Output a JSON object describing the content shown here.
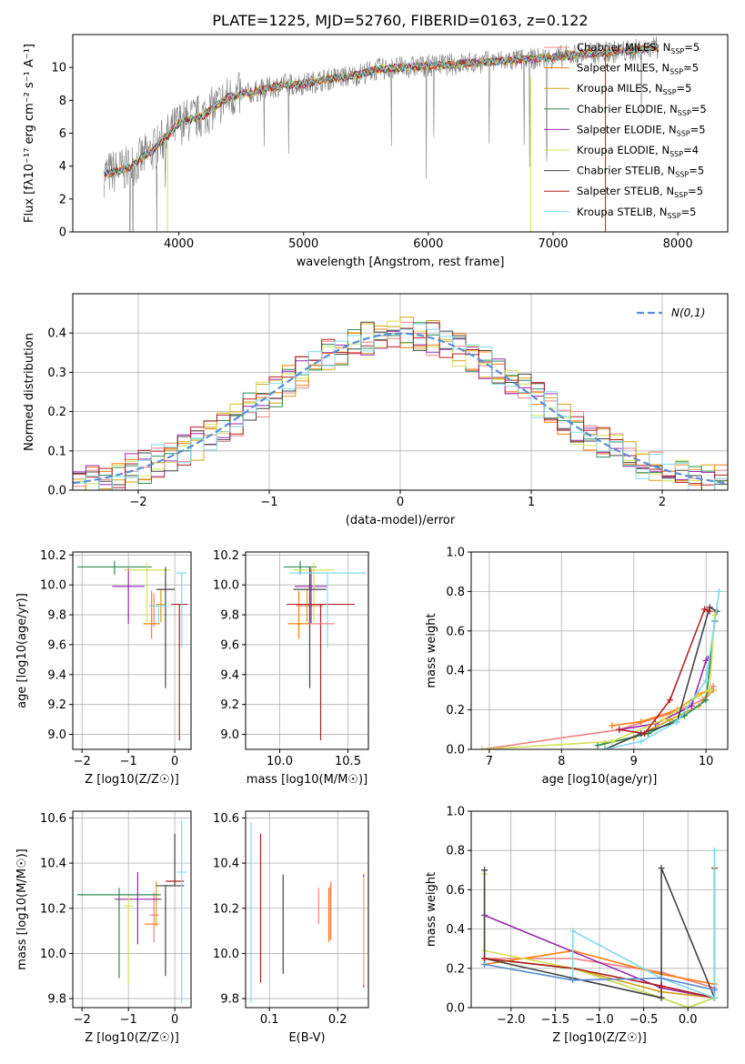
{
  "figure": {
    "title": "PLATE=1225, MJD=52760, FIBERID=0163, z=0.122"
  },
  "colors": {
    "Chabrier MILES": "#f08080",
    "Salpeter MILES": "#ff7f0e",
    "Kroupa MILES": "#d4a017",
    "Chabrier ELODIE": "#2e8b57",
    "Salpeter ELODIE": "#9c27b0",
    "Kroupa ELODIE": "#d4e157",
    "Chabrier STELIB": "#444444",
    "Salpeter STELIB": "#b22222",
    "Kroupa STELIB": "#7fdbe6",
    "data": "#808080",
    "normal": "#5b8ed6",
    "blue": "#5b8ed6"
  },
  "chart_data": [
    {
      "id": "spectrum",
      "type": "line",
      "xlabel": "wavelength [Angstrom, rest frame]",
      "ylabel": "Flux [fλ10⁻¹⁷ erg cm⁻² s⁻¹ A⁻¹]",
      "xlim": [
        3150,
        8400
      ],
      "ylim": [
        0,
        12
      ],
      "xticks": [
        4000,
        5000,
        6000,
        7000,
        8000
      ],
      "yticks": [
        0,
        2,
        4,
        6,
        8,
        10
      ],
      "legend_position": "top-right",
      "legend": [
        "Chabrier MILES, N_SSP=5",
        "Salpeter MILES, N_SSP=5",
        "Kroupa MILES, N_SSP=5",
        "Chabrier ELODIE, N_SSP=5",
        "Salpeter ELODIE, N_SSP=5",
        "Kroupa ELODIE, N_SSP=4",
        "Chabrier STELIB, N_SSP=5",
        "Salpeter STELIB, N_SSP=5",
        "Kroupa STELIB, N_SSP=5"
      ],
      "continuum": {
        "x": [
          3400,
          3600,
          3800,
          4000,
          4200,
          4400,
          4600,
          4800,
          5000,
          5200,
          5400,
          5600,
          5800,
          6000,
          6200,
          6400,
          6600,
          6800,
          7000,
          7200,
          7400,
          7600,
          7800
        ],
        "y": [
          3.5,
          3.9,
          5.0,
          6.6,
          7.1,
          8.2,
          8.5,
          8.9,
          9.0,
          9.3,
          9.5,
          9.9,
          10.0,
          10.1,
          10.2,
          10.3,
          10.4,
          10.5,
          10.6,
          10.8,
          10.9,
          11.0,
          11.2
        ]
      }
    },
    {
      "id": "residuals",
      "type": "line",
      "xlabel": "(data-model)/error",
      "ylabel": "Normed distribution",
      "xlim": [
        -2.5,
        2.5
      ],
      "ylim": [
        0,
        0.5
      ],
      "xticks": [
        -2,
        -1,
        0,
        1,
        2
      ],
      "yticks": [
        0.0,
        0.1,
        0.2,
        0.3,
        0.4
      ],
      "legend_position": "top-right",
      "legend": [
        "N(0,1)"
      ],
      "bin_width": 0.1
    },
    {
      "id": "age_vs_Z",
      "type": "scatter",
      "xlabel": "Z [log10(Z/Z☉)]",
      "ylabel": "age  [log10(age/yr)]",
      "xlim": [
        -2.2,
        0.35
      ],
      "ylim": [
        8.9,
        10.22
      ],
      "xticks": [
        -2,
        -1,
        0
      ],
      "yticks": [
        9.0,
        9.2,
        9.4,
        9.6,
        9.8,
        10.0,
        10.2
      ],
      "points": [
        {
          "model": "Chabrier MILES",
          "x": -0.45,
          "xerr": 0.1,
          "y": 9.86,
          "yerr_lo": 0.14,
          "yerr_hi": 0.08
        },
        {
          "model": "Salpeter MILES",
          "x": -0.5,
          "xerr": 0.18,
          "y": 9.74,
          "yerr_lo": 0.1,
          "yerr_hi": 0.22
        },
        {
          "model": "Kroupa MILES",
          "x": -0.3,
          "xerr": 0.1,
          "y": 9.87,
          "yerr_lo": 0.12,
          "yerr_hi": 0.1
        },
        {
          "model": "Chabrier ELODIE",
          "x": -1.3,
          "xerr": 0.8,
          "y": 10.12,
          "yerr_lo": 0.05,
          "yerr_hi": 0.04
        },
        {
          "model": "Salpeter ELODIE",
          "x": -1.0,
          "xerr": 0.35,
          "y": 9.99,
          "yerr_lo": 0.25,
          "yerr_hi": 0.12
        },
        {
          "model": "Kroupa ELODIE",
          "x": -0.6,
          "xerr": 0.5,
          "y": 10.1,
          "yerr_lo": 0.35,
          "yerr_hi": 0.05
        },
        {
          "model": "Chabrier STELIB",
          "x": -0.2,
          "xerr": 0.2,
          "y": 9.97,
          "yerr_lo": 0.66,
          "yerr_hi": 0.15
        },
        {
          "model": "Salpeter STELIB",
          "x": 0.1,
          "xerr": 0.18,
          "y": 9.87,
          "yerr_lo": 0.91,
          "yerr_hi": 0.0
        },
        {
          "model": "Kroupa STELIB",
          "x": 0.15,
          "xerr": 0.12,
          "y": 10.08,
          "yerr_lo": 0.5,
          "yerr_hi": 0.0
        },
        {
          "model": "Kroupa STELIB",
          "x": -0.35,
          "xerr": 0.2,
          "y": 9.86,
          "yerr_lo": 0.12,
          "yerr_hi": 0.0
        }
      ]
    },
    {
      "id": "age_vs_mass",
      "type": "scatter",
      "xlabel": "mass [log10(M/M☉)]",
      "ylabel": "",
      "xlim": [
        9.75,
        10.65
      ],
      "ylim": [
        8.9,
        10.22
      ],
      "xticks": [
        10.0,
        10.5
      ],
      "yticks": [
        9.0,
        9.2,
        9.4,
        9.6,
        9.8,
        10.0,
        10.2
      ],
      "points": [
        {
          "model": "Chabrier MILES",
          "x": 10.22,
          "xerr": 0.1,
          "y": 9.86,
          "yerr_lo": 0.14,
          "yerr_hi": 0.08
        },
        {
          "model": "Salpeter MILES",
          "x": 10.14,
          "xerr": 0.08,
          "y": 9.74,
          "yerr_lo": 0.1,
          "yerr_hi": 0.22
        },
        {
          "model": "Kroupa MILES",
          "x": 10.2,
          "xerr": 0.06,
          "y": 9.87,
          "yerr_lo": 0.12,
          "yerr_hi": 0.1
        },
        {
          "model": "Chabrier ELODIE",
          "x": 10.15,
          "xerr": 0.12,
          "y": 10.12,
          "yerr_lo": 0.05,
          "yerr_hi": 0.04
        },
        {
          "model": "Salpeter ELODIE",
          "x": 10.23,
          "xerr": 0.12,
          "y": 9.99,
          "yerr_lo": 0.25,
          "yerr_hi": 0.12
        },
        {
          "model": "Kroupa ELODIE",
          "x": 10.25,
          "xerr": 0.15,
          "y": 10.1,
          "yerr_lo": 0.35,
          "yerr_hi": 0.05
        },
        {
          "model": "Chabrier STELIB",
          "x": 10.22,
          "xerr": 0.12,
          "y": 9.97,
          "yerr_lo": 0.66,
          "yerr_hi": 0.15
        },
        {
          "model": "Salpeter STELIB",
          "x": 10.3,
          "xerr": 0.25,
          "y": 9.87,
          "yerr_lo": 0.91,
          "yerr_hi": 0.0
        },
        {
          "model": "Kroupa STELIB",
          "x": 10.35,
          "xerr": 0.28,
          "y": 10.08,
          "yerr_lo": 0.5,
          "yerr_hi": 0.0
        },
        {
          "model": "Chabrier MILES",
          "x": 10.3,
          "xerr": 0.1,
          "y": 9.74,
          "yerr_lo": 0.0,
          "yerr_hi": 0.0
        }
      ]
    },
    {
      "id": "weight_vs_age",
      "type": "line",
      "xlabel": "age  [log10(age/yr)]",
      "ylabel": "mass weight",
      "xlim": [
        6.75,
        10.3
      ],
      "ylim": [
        0,
        1.0
      ],
      "xticks": [
        7,
        8,
        9,
        10
      ],
      "yticks": [
        0.0,
        0.2,
        0.4,
        0.6,
        0.8,
        1.0
      ],
      "series": [
        {
          "model": "Chabrier MILES",
          "x": [
            6.9,
            8.8,
            9.5,
            9.95,
            10.1
          ],
          "y": [
            0.0,
            0.1,
            0.18,
            0.25,
            0.32
          ]
        },
        {
          "model": "Salpeter MILES",
          "x": [
            8.7,
            9.1,
            9.6,
            9.9,
            10.05
          ],
          "y": [
            0.12,
            0.14,
            0.2,
            0.28,
            0.3
          ]
        },
        {
          "model": "Kroupa MILES",
          "x": [
            8.6,
            9.0,
            9.5,
            9.9,
            10.1
          ],
          "y": [
            0.03,
            0.06,
            0.15,
            0.22,
            0.3
          ]
        },
        {
          "model": "Chabrier ELODIE",
          "x": [
            8.5,
            9.2,
            9.7,
            10.0,
            10.12
          ],
          "y": [
            0.02,
            0.08,
            0.17,
            0.25,
            0.65
          ]
        },
        {
          "model": "Salpeter ELODIE",
          "x": [
            8.8,
            9.3,
            9.8,
            10.0,
            10.05
          ],
          "y": [
            0.1,
            0.13,
            0.22,
            0.45,
            0.47
          ]
        },
        {
          "model": "Kroupa ELODIE",
          "x": [
            6.9,
            8.7,
            9.4,
            9.9,
            10.05,
            10.12
          ],
          "y": [
            0.0,
            0.04,
            0.15,
            0.27,
            0.3,
            0.68
          ]
        },
        {
          "model": "Chabrier STELIB",
          "x": [
            8.6,
            9.1,
            9.6,
            10.05,
            10.15
          ],
          "y": [
            0.0,
            0.08,
            0.14,
            0.72,
            0.7
          ]
        },
        {
          "model": "Salpeter STELIB",
          "x": [
            8.8,
            9.15,
            9.5,
            9.98,
            10.05
          ],
          "y": [
            0.1,
            0.08,
            0.25,
            0.71,
            0.7
          ]
        },
        {
          "model": "Kroupa STELIB",
          "x": [
            8.6,
            9.1,
            9.6,
            10.0,
            10.18
          ],
          "y": [
            0.0,
            0.04,
            0.14,
            0.35,
            0.8
          ]
        }
      ]
    },
    {
      "id": "mass_vs_Z",
      "type": "scatter",
      "xlabel": "Z [log10(Z/Z☉)]",
      "ylabel": "mass [log10(M/M☉)]",
      "xlim": [
        -2.2,
        0.35
      ],
      "ylim": [
        9.76,
        10.63
      ],
      "xticks": [
        -2,
        -1,
        0
      ],
      "yticks": [
        9.8,
        10.0,
        10.2,
        10.4,
        10.6
      ],
      "points": [
        {
          "model": "Chabrier MILES",
          "x": -0.45,
          "xerr": 0.1,
          "y": 10.17,
          "yerr_lo": 0.12,
          "yerr_hi": 0.1
        },
        {
          "model": "Salpeter MILES",
          "x": -0.5,
          "xerr": 0.15,
          "y": 10.13,
          "yerr_lo": 0.0,
          "yerr_hi": 0.0
        },
        {
          "model": "Kroupa MILES",
          "x": -0.4,
          "xerr": 0.12,
          "y": 10.24,
          "yerr_lo": 0.12,
          "yerr_hi": 0.08
        },
        {
          "model": "Chabrier ELODIE",
          "x": -1.2,
          "xerr": 0.9,
          "y": 10.26,
          "yerr_lo": 0.37,
          "yerr_hi": 0.03
        },
        {
          "model": "Salpeter ELODIE",
          "x": -0.8,
          "xerr": 0.5,
          "y": 10.24,
          "yerr_lo": 0.2,
          "yerr_hi": 0.12
        },
        {
          "model": "Kroupa ELODIE",
          "x": -1.0,
          "xerr": 0.1,
          "y": 10.21,
          "yerr_lo": 0.35,
          "yerr_hi": 0.04
        },
        {
          "model": "Chabrier STELIB",
          "x": -0.2,
          "xerr": 0.2,
          "y": 10.3,
          "yerr_lo": 0.4,
          "yerr_hi": 0.0
        },
        {
          "model": "Chabrier STELIB",
          "x": 0.0,
          "xerr": 0.2,
          "y": 10.3,
          "yerr_lo": 0.0,
          "yerr_hi": 0.23
        },
        {
          "model": "Salpeter STELIB",
          "x": 0.0,
          "xerr": 0.2,
          "y": 10.32,
          "yerr_lo": 0.0,
          "yerr_hi": 0.0
        },
        {
          "model": "Kroupa STELIB",
          "x": 0.15,
          "xerr": 0.1,
          "y": 10.36,
          "yerr_lo": 0.58,
          "yerr_hi": 0.23
        }
      ]
    },
    {
      "id": "mass_vs_ebv",
      "type": "scatter",
      "xlabel": "E(B-V)",
      "ylabel": "",
      "xlim": [
        0.065,
        0.245
      ],
      "ylim": [
        9.76,
        10.63
      ],
      "xticks": [
        0.1,
        0.2
      ],
      "yticks": [
        9.8,
        10.0,
        10.2,
        10.4,
        10.6
      ],
      "points": [
        {
          "model": "Kroupa STELIB",
          "x": 0.073,
          "y": 10.2,
          "yerr_lo": 0.42,
          "yerr_hi": 0.38
        },
        {
          "model": "Salpeter STELIB",
          "x": 0.087,
          "y": 10.2,
          "yerr_lo": 0.33,
          "yerr_hi": 0.33
        },
        {
          "model": "Chabrier STELIB",
          "x": 0.12,
          "y": 10.13,
          "yerr_lo": 0.22,
          "yerr_hi": 0.22
        },
        {
          "model": "Chabrier MILES",
          "x": 0.172,
          "y": 10.2,
          "yerr_lo": 0.07,
          "yerr_hi": 0.09
        },
        {
          "model": "Salpeter MILES",
          "x": 0.187,
          "y": 10.17,
          "yerr_lo": 0.12,
          "yerr_hi": 0.12
        },
        {
          "model": "Kroupa MILES",
          "x": 0.189,
          "y": 10.18,
          "yerr_lo": 0.12,
          "yerr_hi": 0.12
        },
        {
          "model": "Chabrier MILES",
          "x": 0.19,
          "y": 10.19,
          "yerr_lo": 0.13,
          "yerr_hi": 0.13
        },
        {
          "model": "Salpeter ELODIE",
          "x": 0.238,
          "y": 10.1,
          "yerr_lo": 0.25,
          "yerr_hi": 0.25
        },
        {
          "model": "Kroupa ELODIE",
          "x": 0.238,
          "y": 10.1,
          "yerr_lo": 0.24,
          "yerr_hi": 0.24
        }
      ]
    },
    {
      "id": "weight_vs_Z",
      "type": "line",
      "xlabel": "Z [log10(Z/Z☉)]",
      "ylabel": "mass weight",
      "xlim": [
        -2.45,
        0.45
      ],
      "ylim": [
        0,
        1.0
      ],
      "xticks": [
        -2.0,
        -1.5,
        -1.0,
        -0.5,
        0.0
      ],
      "yticks": [
        0.0,
        0.2,
        0.4,
        0.6,
        0.8,
        1.0
      ],
      "series": [
        {
          "model": "Chabrier MILES",
          "x": [
            -2.3,
            -1.3,
            -0.3,
            0.3
          ],
          "y": [
            0.25,
            0.25,
            0.18,
            0.1
          ]
        },
        {
          "model": "Salpeter MILES",
          "x": [
            -2.3,
            -1.3,
            -0.3,
            0.3
          ],
          "y": [
            0.22,
            0.29,
            0.17,
            0.12
          ]
        },
        {
          "model": "Kroupa MILES",
          "x": [
            -2.3,
            -1.3,
            -0.3,
            0.3
          ],
          "y": [
            0.25,
            0.2,
            0.08,
            0.05
          ]
        },
        {
          "model": "Chabrier ELODIE",
          "x": [
            -2.3,
            -1.3,
            -0.3,
            0.0,
            0.3
          ],
          "y": [
            0.25,
            0.2,
            0.05,
            0.0,
            0.05
          ]
        },
        {
          "model": "Salpeter ELODIE",
          "x": [
            -2.3,
            -0.3,
            0.3
          ],
          "y": [
            0.47,
            0.1,
            0.05
          ]
        },
        {
          "model": "Kroupa ELODIE",
          "x": [
            -2.3,
            -2.3,
            -1.3,
            -0.3,
            0.0,
            0.3
          ],
          "y": [
            0.68,
            0.29,
            0.2,
            0.05,
            0.0,
            0.05
          ]
        },
        {
          "model": "Chabrier STELIB",
          "x": [
            -2.3,
            -2.3,
            -1.3,
            -0.3,
            -0.3,
            0.3
          ],
          "y": [
            0.7,
            0.25,
            0.15,
            0.05,
            0.71,
            0.05
          ]
        },
        {
          "model": "Salpeter STELIB",
          "x": [
            -2.3,
            -1.3,
            -0.3,
            0.3,
            0.3
          ],
          "y": [
            0.25,
            0.2,
            0.11,
            0.05,
            0.71
          ]
        },
        {
          "model": "Kroupa STELIB",
          "x": [
            -2.3,
            -1.3,
            -1.3,
            -0.3,
            0.3,
            0.3
          ],
          "y": [
            0.22,
            0.14,
            0.39,
            0.15,
            0.05,
            0.8
          ]
        },
        {
          "model": "blue",
          "x": [
            -2.3,
            -1.3,
            -0.3,
            0.3
          ],
          "y": [
            0.22,
            0.14,
            0.15,
            0.09
          ]
        }
      ]
    }
  ]
}
